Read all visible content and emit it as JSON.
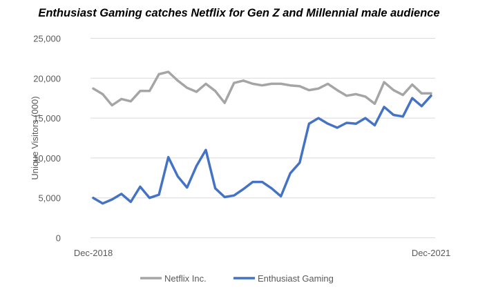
{
  "chart_data": {
    "type": "line",
    "title": "Enthusiast Gaming catches Netflix for Gen Z and Millennial male audience",
    "xlabel": "",
    "ylabel": "Unique Visitors (000)",
    "ylim": [
      0,
      25000
    ],
    "yticks": [
      "0",
      "5,000",
      "10,000",
      "15,000",
      "20,000",
      "25,000"
    ],
    "xtick_labels": [
      "Dec-2018",
      "Dec-2021"
    ],
    "grid": "horizontal",
    "legend": "bottom",
    "series": [
      {
        "name": "Netflix Inc.",
        "color": "#A5A5A5",
        "values": [
          18700,
          18000,
          16600,
          17400,
          17100,
          18400,
          18400,
          20500,
          20800,
          19700,
          18800,
          18300,
          19300,
          18400,
          16900,
          19400,
          19700,
          19300,
          19100,
          19300,
          19300,
          19100,
          19000,
          18500,
          18700,
          19300,
          18500,
          17800,
          18000,
          17700,
          16800,
          19500,
          18500,
          17900,
          19200,
          18100,
          18100
        ]
      },
      {
        "name": "Enthusiast Gaming",
        "color": "#4472C4",
        "values": [
          5000,
          4300,
          4800,
          5500,
          4500,
          6400,
          5000,
          5400,
          10100,
          7700,
          6300,
          9000,
          11000,
          6200,
          5100,
          5300,
          6100,
          7000,
          7000,
          6200,
          5200,
          8100,
          9400,
          14300,
          15000,
          14300,
          13800,
          14400,
          14300,
          15000,
          14100,
          16400,
          15400,
          15200,
          17500,
          16500,
          17800
        ]
      }
    ]
  }
}
